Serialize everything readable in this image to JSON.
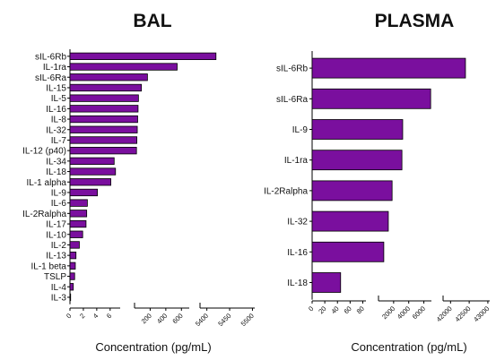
{
  "chart_data": [
    {
      "type": "bar",
      "orientation": "horizontal",
      "title": "BAL",
      "xlabel": "Concentration (pg/mL)",
      "ylabel": "",
      "color": "#7a0f9e",
      "axis_segments": [
        {
          "ticks": [
            0,
            2,
            4,
            6
          ],
          "range": [
            0,
            7.5
          ]
        },
        {
          "ticks": [
            200,
            400,
            600
          ],
          "range": [
            0,
            700
          ]
        },
        {
          "ticks": [
            5400,
            5450,
            5500
          ],
          "range": [
            5385,
            5505
          ]
        }
      ],
      "tick_labels": [
        "0",
        "2",
        "4",
        "6",
        "200",
        "400",
        "600",
        "5400",
        "5450",
        "5500"
      ],
      "categories": [
        "sIL-6Rb",
        "IL-1ra",
        "sIL-6Ra",
        "IL-15",
        "IL-5",
        "IL-16",
        "IL-8",
        "IL-32",
        "IL-7",
        "IL-12 (p40)",
        "IL-34",
        "IL-18",
        "IL-1 alpha",
        "IL-9",
        "IL-6",
        "IL-2Ralpha",
        "IL-17",
        "IL-10",
        "IL-2",
        "IL-13",
        "IL-1 beta",
        "TSLP",
        "IL-4",
        "IL-3"
      ],
      "values": [
        5420,
        545,
        165,
        88,
        50,
        45,
        40,
        35,
        30,
        25,
        6.6,
        6.8,
        6.1,
        4.1,
        2.6,
        2.5,
        2.4,
        1.9,
        1.4,
        0.9,
        0.8,
        0.7,
        0.5,
        0.1
      ]
    },
    {
      "type": "bar",
      "orientation": "horizontal",
      "title": "PLASMA",
      "xlabel": "Concentration (pg/mL)",
      "ylabel": "",
      "color": "#7a0f9e",
      "axis_segments": [
        {
          "ticks": [
            0,
            20,
            40,
            60,
            80
          ],
          "range": [
            0,
            85
          ]
        },
        {
          "ticks": [
            2000,
            4000,
            6000
          ],
          "range": [
            0,
            7000
          ]
        },
        {
          "ticks": [
            42000,
            42500,
            43000
          ],
          "range": [
            41800,
            43050
          ]
        }
      ],
      "tick_labels": [
        "0",
        "20",
        "40",
        "60",
        "80",
        "2000",
        "4000",
        "6000",
        "42000",
        "42500",
        "43000"
      ],
      "categories": [
        "sIL-6Rb",
        "sIL-6Ra",
        "IL-9",
        "IL-1ra",
        "IL-2Ralpha",
        "IL-32",
        "IL-16",
        "IL-18"
      ],
      "values": [
        42400,
        6900,
        3200,
        3100,
        1800,
        1300,
        700,
        45
      ]
    }
  ]
}
